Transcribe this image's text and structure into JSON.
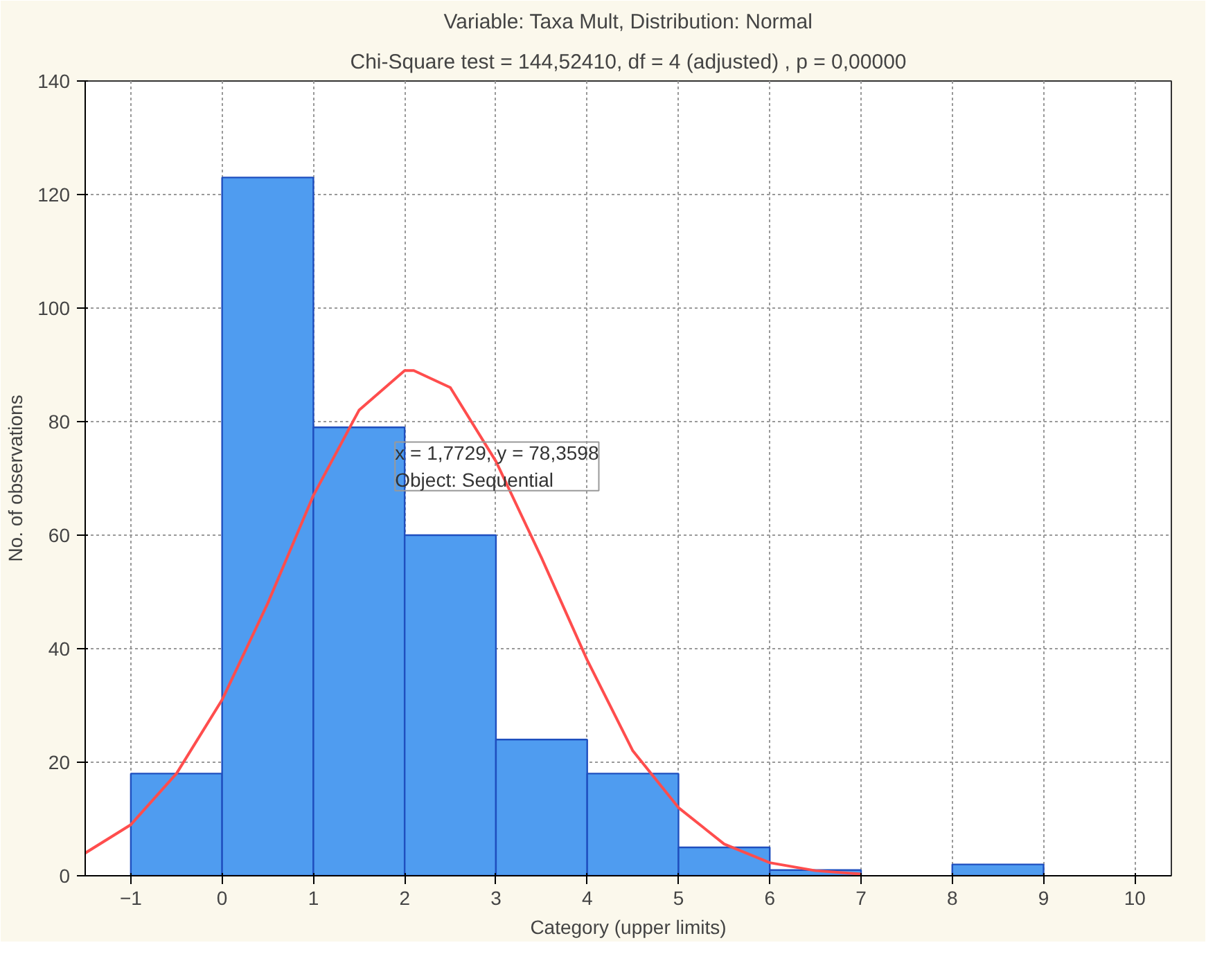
{
  "chart_data": {
    "type": "histogram",
    "title": "Variable: Taxa Mult, Distribution: Normal",
    "subtitle": "Chi-Square test = 144,52410, df = 4 (adjusted) , p = 0,00000",
    "xlabel": "Category (upper limits)",
    "ylabel": "No. of observations",
    "bins": [
      -1,
      0,
      1,
      2,
      3,
      4,
      5,
      6,
      7,
      8,
      9
    ],
    "values": [
      18,
      123,
      79,
      60,
      24,
      18,
      5,
      1,
      0,
      2
    ],
    "color": "#4f9cf0",
    "series": [
      {
        "type": "line",
        "color": "#ff4d4d",
        "x": [
          -1.5,
          -1,
          -0.5,
          0,
          0.5,
          1,
          1.5,
          2,
          2.1,
          2.5,
          3,
          3.5,
          4,
          4.5,
          5,
          5.5,
          6,
          6.5,
          7
        ],
        "values": [
          4,
          9,
          18,
          31,
          48,
          67,
          82,
          89,
          89,
          86,
          73,
          56,
          38,
          22,
          12,
          5.6,
          2.3,
          0.9,
          0.3
        ]
      }
    ],
    "annotations": [
      {
        "text": "x = 1,7729, y = 78,3598\nObject: Sequential",
        "x": 1.7729,
        "y": 78.3598
      }
    ],
    "xlim": [
      -1.5,
      10.4
    ],
    "ylim": [
      0,
      140
    ],
    "xticks": [
      -1,
      0,
      1,
      2,
      3,
      4,
      5,
      6,
      7,
      8,
      9,
      10
    ],
    "yticks": [
      0,
      20,
      40,
      60,
      80,
      100,
      120,
      140
    ],
    "grid": true
  }
}
